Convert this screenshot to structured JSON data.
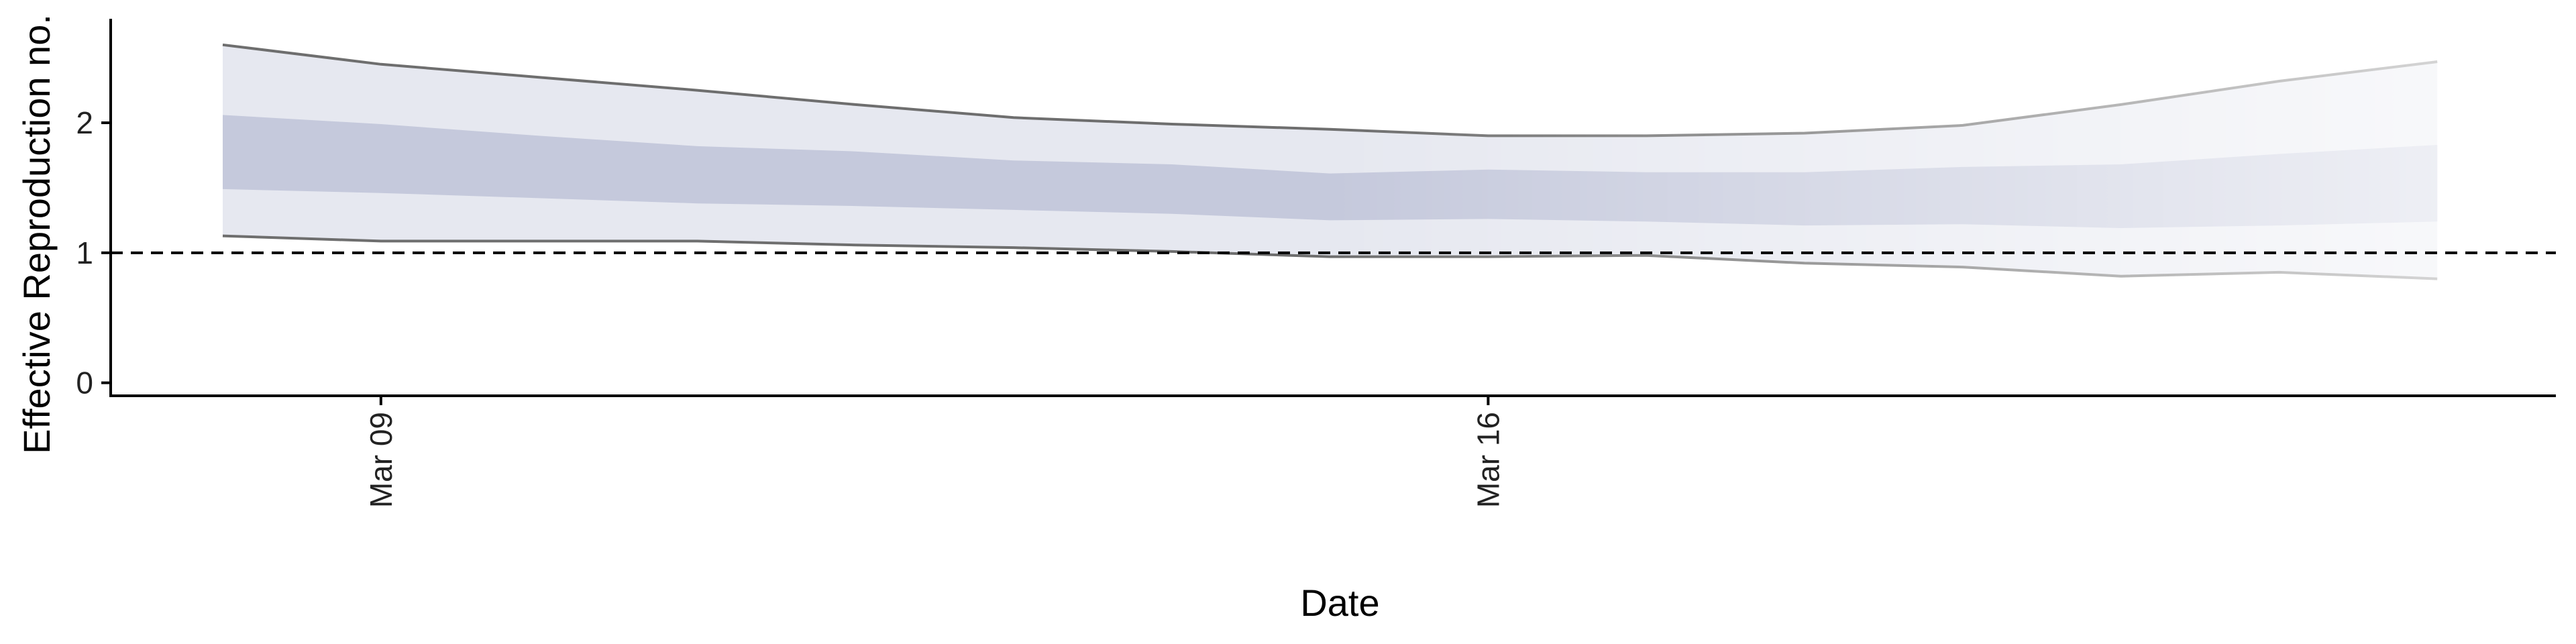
{
  "chart_data": {
    "type": "area",
    "xlabel": "Date",
    "ylabel": "Effective Reproduction no.",
    "x": [
      "Mar 08",
      "Mar 09",
      "Mar 10",
      "Mar 11",
      "Mar 12",
      "Mar 13",
      "Mar 14",
      "Mar 15",
      "Mar 16",
      "Mar 17",
      "Mar 18",
      "Mar 19",
      "Mar 20",
      "Mar 21",
      "Mar 22"
    ],
    "x_range": [
      "Mar 07 07:00",
      "Mar 22 18:00"
    ],
    "x_ticks": [
      {
        "date": "Mar 09",
        "label": "Mar 09"
      },
      {
        "date": "Mar 16",
        "label": "Mar 16"
      }
    ],
    "ylim": [
      -0.1,
      2.8
    ],
    "y_ticks": [
      0,
      1,
      2
    ],
    "reference_line": {
      "y": 1,
      "style": "dashed"
    },
    "series": [
      {
        "role": "outer_upper",
        "values": [
          2.6,
          2.45,
          2.35,
          2.25,
          2.14,
          2.04,
          1.99,
          1.95,
          1.9,
          1.9,
          1.92,
          1.98,
          2.14,
          2.32,
          2.47
        ]
      },
      {
        "role": "inner_upper",
        "values": [
          2.06,
          1.99,
          1.9,
          1.82,
          1.78,
          1.71,
          1.68,
          1.61,
          1.64,
          1.62,
          1.62,
          1.66,
          1.68,
          1.76,
          1.83
        ]
      },
      {
        "role": "inner_lower",
        "values": [
          1.49,
          1.46,
          1.42,
          1.38,
          1.36,
          1.33,
          1.3,
          1.25,
          1.26,
          1.24,
          1.21,
          1.22,
          1.19,
          1.21,
          1.24
        ]
      },
      {
        "role": "outer_lower",
        "values": [
          1.13,
          1.09,
          1.09,
          1.09,
          1.06,
          1.04,
          1.01,
          0.97,
          0.97,
          0.98,
          0.92,
          0.89,
          0.82,
          0.85,
          0.8
        ]
      }
    ],
    "colors": {
      "inner_band": "#c5c9dc",
      "outer_band": "#e6e8f0",
      "outline": "#6e6e6e",
      "reference": "#000000",
      "axis": "#000000"
    },
    "fade": {
      "start": "Mar 15",
      "end": "Mar 22",
      "min_opacity": 0.3
    },
    "grid": false,
    "legend": "none"
  }
}
